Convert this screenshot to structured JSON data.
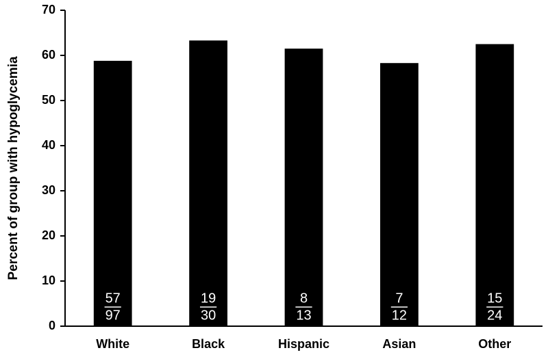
{
  "chart_data": {
    "type": "bar",
    "y_label": "Percent of group with hypoglycemia",
    "categories": [
      "White",
      "Black",
      "Hispanic",
      "Asian",
      "Other"
    ],
    "values": [
      58.8,
      63.3,
      61.5,
      58.3,
      62.5
    ],
    "numerators": [
      57,
      19,
      8,
      7,
      15
    ],
    "denominators": [
      97,
      30,
      13,
      12,
      24
    ],
    "color": "#000000",
    "ylim": [
      0,
      70
    ],
    "yticks": [
      0,
      10,
      20,
      30,
      40,
      50,
      60,
      70
    ],
    "grid": false
  }
}
